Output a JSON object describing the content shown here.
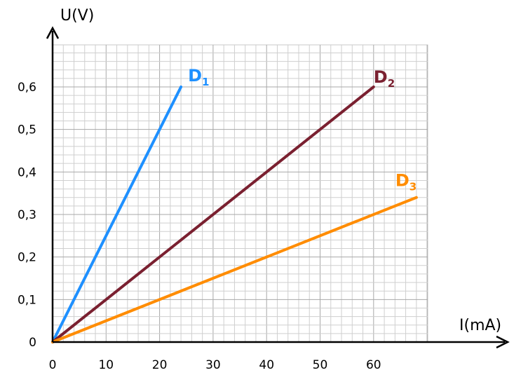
{
  "chart_data": {
    "type": "line",
    "title": "",
    "xlabel": "I(mA)",
    "ylabel": "U(V)",
    "xlim": [
      0,
      70
    ],
    "ylim": [
      0,
      0.7
    ],
    "x_ticks": [
      "0",
      "10",
      "20",
      "30",
      "40",
      "50",
      "60"
    ],
    "y_ticks": [
      "0",
      "0,1",
      "0,2",
      "0,3",
      "0,4",
      "0,5",
      "0,6"
    ],
    "grid": true,
    "series": [
      {
        "name": "D",
        "subscript": "1",
        "color": "#1e90ff",
        "x": [
          0,
          24
        ],
        "y": [
          0,
          0.6
        ]
      },
      {
        "name": "D",
        "subscript": "2",
        "color": "#7a2030",
        "x": [
          0,
          60
        ],
        "y": [
          0,
          0.6
        ]
      },
      {
        "name": "D",
        "subscript": "3",
        "color": "#ff8c00",
        "x": [
          0,
          68
        ],
        "y": [
          0,
          0.34
        ]
      }
    ]
  }
}
